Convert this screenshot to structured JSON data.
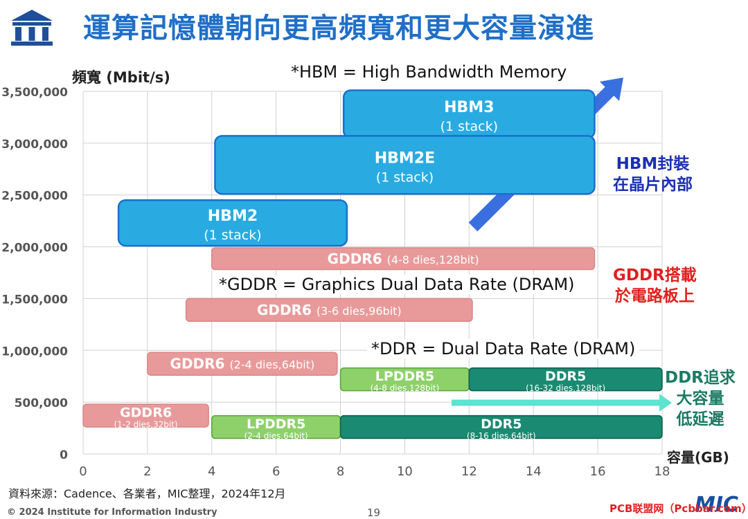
{
  "header": {
    "title": "運算記憶體朝向更高頻寬和更大容量演進"
  },
  "chart_data": {
    "type": "table",
    "ylabel": "頻寬 (Mbit/s)",
    "xlabel": "容量(GB)",
    "xlim": [
      0,
      18
    ],
    "ylim": [
      0,
      3500000
    ],
    "x_ticks": [
      "0",
      "2",
      "4",
      "6",
      "8",
      "10",
      "12",
      "14",
      "16",
      "18"
    ],
    "y_ticks": [
      "0",
      "500,000",
      "1,000,000",
      "1,500,000",
      "2,000,000",
      "2,500,000",
      "3,000,000",
      "3,500,000"
    ],
    "grid": true,
    "boxes": [
      {
        "name": "HBM3",
        "sub": "(1 stack)",
        "x0": 8.1,
        "x1": 15.9,
        "y0": 3050000,
        "y1": 3510000,
        "color": "#29abe2"
      },
      {
        "name": "HBM2E",
        "sub": "(1 stack)",
        "x0": 4.1,
        "x1": 15.9,
        "y0": 2510000,
        "y1": 3070000,
        "color": "#29abe2"
      },
      {
        "name": "HBM2",
        "sub": "(1 stack)",
        "x0": 1.1,
        "x1": 8.2,
        "y0": 2010000,
        "y1": 2450000,
        "color": "#29abe2"
      },
      {
        "name": "GDDR6",
        "sub": "(4-8 dies,128bit)",
        "x0": 4.0,
        "x1": 15.9,
        "y0": 1780000,
        "y1": 1990000,
        "color": "#e89a9a",
        "inline": true
      },
      {
        "name": "GDDR6",
        "sub": "(3-6 dies,96bit)",
        "x0": 3.2,
        "x1": 12.1,
        "y0": 1280000,
        "y1": 1500000,
        "color": "#e89a9a",
        "inline": true
      },
      {
        "name": "GDDR6",
        "sub": "(2-4 dies,64bit)",
        "x0": 2.0,
        "x1": 7.9,
        "y0": 760000,
        "y1": 980000,
        "color": "#e89a9a",
        "inline": true
      },
      {
        "name": "GDDR6",
        "sub": "(1-2 dies,32bit)",
        "x0": 0.0,
        "x1": 3.9,
        "y0": 260000,
        "y1": 480000,
        "color": "#e89a9a"
      },
      {
        "name": "LPDDR5",
        "sub": "(4-8 dies,128bit)",
        "x0": 8.0,
        "x1": 12.0,
        "y0": 610000,
        "y1": 830000,
        "color": "#8ed16a"
      },
      {
        "name": "DDR5",
        "sub": "(16-32 dies,128bit)",
        "x0": 12.0,
        "x1": 18.0,
        "y0": 610000,
        "y1": 830000,
        "color": "#1a8a72"
      },
      {
        "name": "LPDDR5",
        "sub": "(2-4 dies,64bit)",
        "x0": 4.0,
        "x1": 8.0,
        "y0": 150000,
        "y1": 370000,
        "color": "#8ed16a"
      },
      {
        "name": "DDR5",
        "sub": "(8-16 dies,64bit)",
        "x0": 8.0,
        "x1": 18.0,
        "y0": 150000,
        "y1": 370000,
        "color": "#1a8a72"
      }
    ],
    "annotations": [
      {
        "text": "*HBM = High Bandwidth Memory"
      },
      {
        "text": "*GDDR = Graphics Dual Data Rate (DRAM)"
      },
      {
        "text": "*DDR = Dual Data Rate (DRAM)"
      }
    ]
  },
  "side_notes": {
    "hbm": {
      "line1": "HBM封裝",
      "line2": "在晶片內部",
      "color": "#1b2fb5"
    },
    "gddr": {
      "line1": "GDDR搭載",
      "line2": "於電路板上",
      "color": "#e0201e"
    },
    "ddr": {
      "line1": "DDR追求",
      "line2": "大容量",
      "line3": "低延遲",
      "color": "#1a7a62"
    }
  },
  "footer": {
    "source": "資料來源：Cadence、各業者，MIC整理，2024年12月",
    "copyright": "© 2024 Institute for Information Industry",
    "page": "19",
    "brand": "MIC",
    "watermark": "PCB联盟网（Pcbbar.com）"
  },
  "colors": {
    "arrow_blue": "#3a6fe0",
    "arrow_teal": "#5de3cf",
    "title_blue": "#1f6fc8"
  }
}
